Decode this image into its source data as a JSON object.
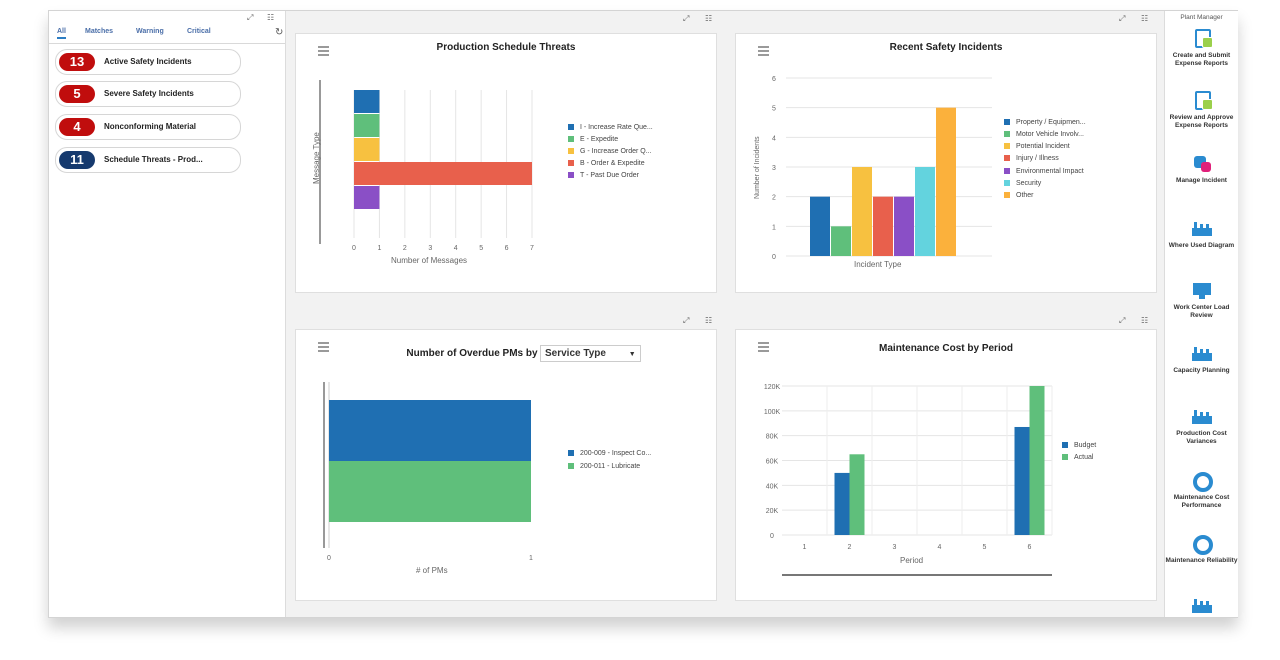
{
  "tabs": [
    "All",
    "Matches",
    "Warning",
    "Critical"
  ],
  "alerts": [
    {
      "count": "13",
      "label": "Active Safety Incidents",
      "color": "#c00d0d"
    },
    {
      "count": "5",
      "label": "Severe Safety Incidents",
      "color": "#c00d0d"
    },
    {
      "count": "4",
      "label": "Nonconforming Material",
      "color": "#c00d0d"
    },
    {
      "count": "11",
      "label": "Schedule Threats - Prod...",
      "color": "#163a6e"
    }
  ],
  "chart_data": [
    {
      "type": "bar",
      "orientation": "horizontal",
      "stacked": true,
      "title": "Production Schedule Threats",
      "xlabel": "Number of Messages",
      "ylabel": "Message Type",
      "xlim": [
        0,
        7
      ],
      "x_ticks": [
        "0",
        "1",
        "2",
        "3",
        "4",
        "5",
        "6",
        "7"
      ],
      "grid": true,
      "legend_position": "right",
      "series": [
        {
          "name": "I - Increase Rate Que...",
          "value": 1,
          "color": "#1f6fb2"
        },
        {
          "name": "E - Expedite",
          "value": 1,
          "color": "#5fbf7b"
        },
        {
          "name": "G - Increase Order Q...",
          "value": 1,
          "color": "#f7c140"
        },
        {
          "name": "B - Order & Expedite",
          "value": 7,
          "color": "#e8604c"
        },
        {
          "name": "T - Past Due Order",
          "value": 1,
          "color": "#8a4fc6"
        }
      ]
    },
    {
      "type": "bar",
      "title": "Recent Safety Incidents",
      "xlabel": "Incident Type",
      "ylabel": "Number of Incidents",
      "ylim": [
        0,
        6
      ],
      "y_ticks": [
        "0",
        "1",
        "2",
        "3",
        "4",
        "5",
        "6"
      ],
      "grid": true,
      "legend_position": "right",
      "series": [
        {
          "name": "Property / Equipmen...",
          "value": 2,
          "color": "#1f6fb2"
        },
        {
          "name": "Motor Vehicle Involv...",
          "value": 1,
          "color": "#5fbf7b"
        },
        {
          "name": "Potential Incident",
          "value": 3,
          "color": "#f7c140"
        },
        {
          "name": "Injury / Illness",
          "value": 2,
          "color": "#e8604c"
        },
        {
          "name": "Environmental Impact",
          "value": 2,
          "color": "#8a4fc6"
        },
        {
          "name": "Security",
          "value": 3,
          "color": "#63d3de"
        },
        {
          "name": "Other",
          "value": 5,
          "color": "#fbb13c"
        }
      ]
    },
    {
      "type": "bar",
      "orientation": "horizontal",
      "stacked": true,
      "title": "Number of Overdue PMs by",
      "xlabel": "# of PMs",
      "xlim": [
        0,
        1
      ],
      "x_ticks": [
        "0",
        "1"
      ],
      "legend_position": "right",
      "series": [
        {
          "name": "200-009 - Inspect Co...",
          "value": 1,
          "color": "#1f6fb2"
        },
        {
          "name": "200-011 - Lubricate",
          "value": 1,
          "color": "#5fbf7b"
        }
      ]
    },
    {
      "type": "bar",
      "title": "Maintenance Cost by Period",
      "xlabel": "Period",
      "categories": [
        "1",
        "2",
        "3",
        "4",
        "5",
        "6"
      ],
      "ylim": [
        0,
        120000
      ],
      "y_ticks": [
        "0",
        "20K",
        "40K",
        "60K",
        "80K",
        "100K",
        "120K"
      ],
      "grid": true,
      "legend_position": "right",
      "series": [
        {
          "name": "Budget",
          "values": [
            0,
            50000,
            0,
            0,
            0,
            87000
          ],
          "color": "#1f6fb2"
        },
        {
          "name": "Actual",
          "values": [
            0,
            65000,
            0,
            0,
            0,
            120000
          ],
          "color": "#5fbf7b"
        }
      ]
    }
  ],
  "service_select": {
    "value": "Service Type"
  },
  "right_panel": {
    "title": "Plant Manager",
    "apps": [
      {
        "label": "Create and Submit Expense Reports",
        "icon": "expense-report-icon"
      },
      {
        "label": "Review and Approve Expense Reports",
        "icon": "approve-report-icon"
      },
      {
        "label": "Manage Incident",
        "icon": "incident-icon"
      },
      {
        "label": "Where Used Diagram",
        "icon": "factory-icon"
      },
      {
        "label": "Work Center Load Review",
        "icon": "monitor-icon"
      },
      {
        "label": "Capacity Planning",
        "icon": "factory-icon"
      },
      {
        "label": "Production Cost Variances",
        "icon": "factory-icon"
      },
      {
        "label": "Maintenance Cost Performance",
        "icon": "ring-icon"
      },
      {
        "label": "Maintenance Reliability",
        "icon": "ring-icon"
      },
      {
        "label": "",
        "icon": "factory-icon"
      }
    ]
  }
}
